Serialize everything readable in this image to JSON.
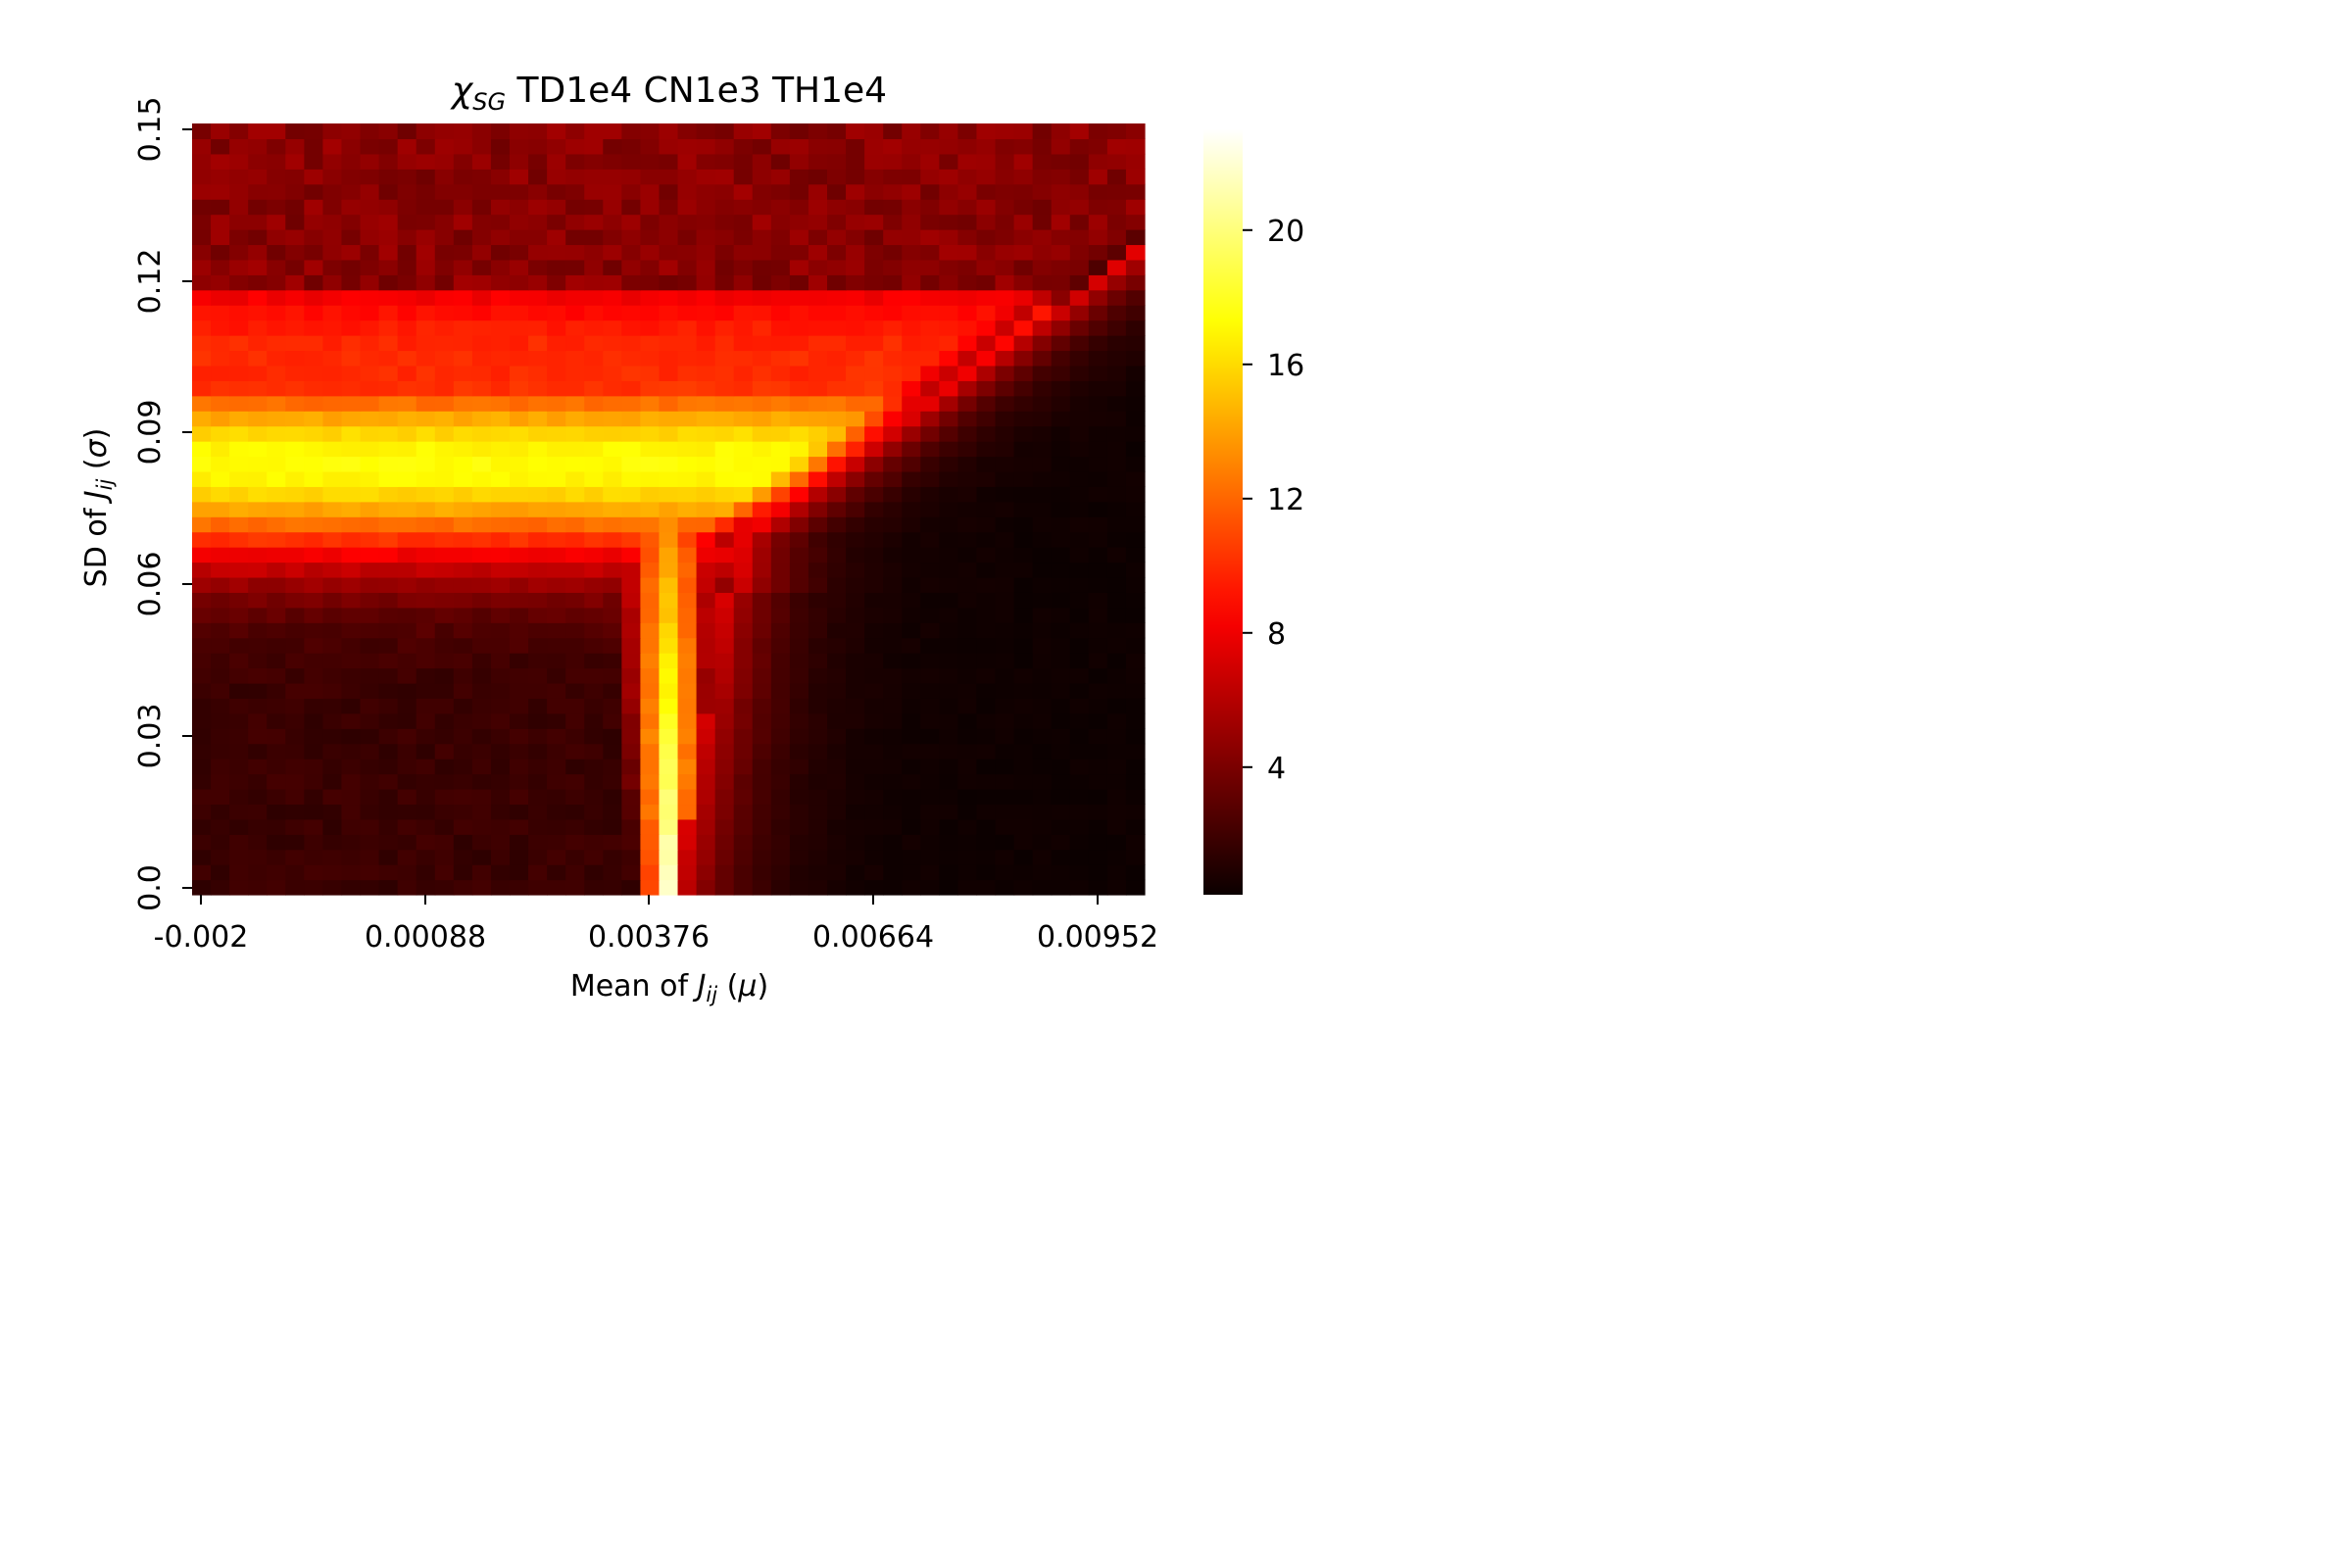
{
  "chart_data": {
    "type": "heatmap",
    "title": {
      "symbol": "χ",
      "subscript": "SG",
      "text": " TD1e4 CN1e3 TH1e4"
    },
    "xlabel": {
      "pre": "Mean of ",
      "var": "J",
      "sub": "ij",
      "post": " (",
      "greek": "μ",
      "close": ")"
    },
    "ylabel": {
      "pre": "SD of ",
      "var": "J",
      "sub": "ij",
      "post": " (",
      "greek": "σ",
      "close": ")"
    },
    "x_ticks": [
      "-0.002",
      "0.00088",
      "0.00376",
      "0.00664",
      "0.00952"
    ],
    "y_ticks": [
      "0.0",
      "0.03",
      "0.06",
      "0.09",
      "0.12",
      "0.15"
    ],
    "colorbar_ticks": [
      "4",
      "8",
      "12",
      "16",
      "20"
    ],
    "colormap": "hot",
    "value_range": [
      0.2,
      23
    ],
    "x_range": [
      -0.002,
      0.0104
    ],
    "y_range": [
      0.0,
      0.152
    ],
    "grid_size": {
      "columns": 51,
      "rows": 51
    },
    "description_of_values": {
      "low_mu_low_sigma_plateau": 1.8,
      "sg_band_sigma_center": 0.085,
      "sg_band_peak_value": 17.5,
      "critical_mu_at_zero_sigma": 0.0042,
      "peak_value_near_critical_mu": 23,
      "ferromagnetic_region_value": 0.3,
      "high_sigma_value": 4.5
    },
    "colors": {
      "background": "#ffffff",
      "axis": "#000000"
    }
  }
}
